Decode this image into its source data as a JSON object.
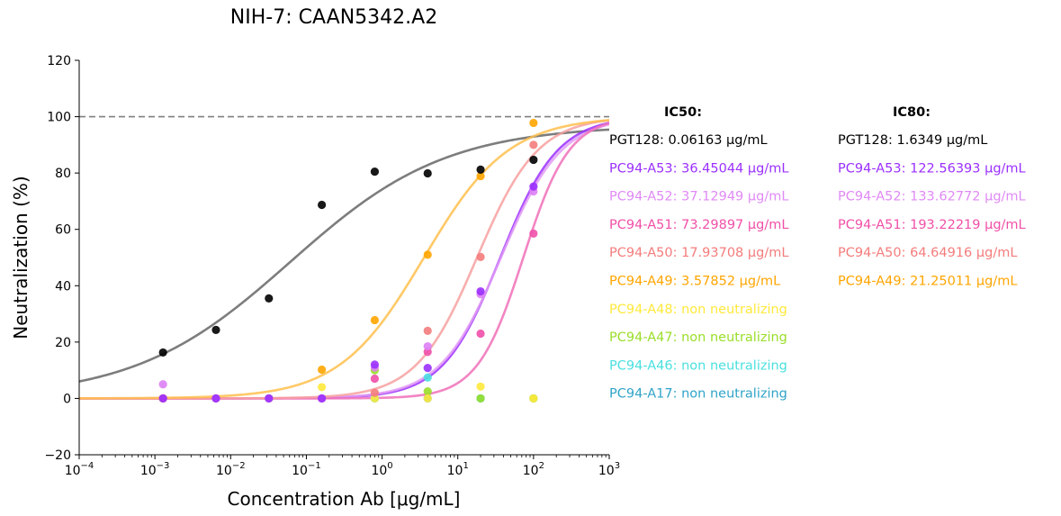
{
  "chart_data": {
    "type": "scatter",
    "title": "NIH-7: CAAN5342.A2",
    "xlabel": "Concentration Ab [μg/mL]",
    "ylabel": "Neutralization (%)",
    "xscale": "log",
    "xlim": [
      0.0001,
      1000
    ],
    "ylim": [
      -20,
      120
    ],
    "x_ticks": [
      {
        "base": "10",
        "exp": "−4"
      },
      {
        "base": "10",
        "exp": "−3"
      },
      {
        "base": "10",
        "exp": "−2"
      },
      {
        "base": "10",
        "exp": "−1"
      },
      {
        "base": "10",
        "exp": "0"
      },
      {
        "base": "10",
        "exp": "1"
      },
      {
        "base": "10",
        "exp": "2"
      },
      {
        "base": "10",
        "exp": "3"
      }
    ],
    "y_ticks": [
      "−20",
      "0",
      "20",
      "40",
      "60",
      "80",
      "100",
      "120"
    ],
    "y_tick_values": [
      -20,
      0,
      20,
      40,
      60,
      80,
      100,
      120
    ],
    "reference_line": {
      "y": 100,
      "style": "dashed",
      "color": "#808080"
    },
    "x": [
      0.00128,
      0.0064,
      0.032,
      0.16,
      0.8,
      4,
      20,
      100
    ],
    "series": [
      {
        "name": "PGT128",
        "color": "#000000",
        "curve_color": "#666666",
        "ic50": 0.06163,
        "ic80": 1.6349,
        "values": [
          16.3,
          24.3,
          35.5,
          68.7,
          80.5,
          79.9,
          81.2,
          84.7
        ],
        "top": 97
      },
      {
        "name": "PC94-A53",
        "color": "#9b30ff",
        "curve_color": "#9b30ff",
        "ic50": 36.45044,
        "ic80": 122.56393,
        "values": [
          0,
          0,
          0,
          0,
          12,
          10.8,
          38,
          75.2
        ],
        "top": 100
      },
      {
        "name": "PC94-A52",
        "color": "#dd80f5",
        "curve_color": "#e29af5",
        "ic50": 37.12949,
        "ic80": 133.62772,
        "values": [
          5,
          0,
          0,
          0,
          11,
          18.5,
          37,
          73.5
        ],
        "top": 100
      },
      {
        "name": "PC94-A51",
        "color": "#f050a8",
        "curve_color": "#f070b8",
        "ic50": 73.29897,
        "ic80": 193.22219,
        "values": [
          0,
          0,
          0,
          0,
          7,
          16.5,
          23,
          58.5
        ],
        "top": 100
      },
      {
        "name": "PC94-A50",
        "color": "#f47c7c",
        "curve_color": "#f7a0a0",
        "ic50": 17.93708,
        "ic80": 64.64916,
        "values": [
          0,
          0,
          0,
          0,
          2,
          24,
          50.2,
          90
        ],
        "top": 100
      },
      {
        "name": "PC94-A49",
        "color": "#ffa500",
        "curve_color": "#ffc04d",
        "ic50": 3.57852,
        "ic80": 21.25011,
        "values": [
          0,
          0,
          0,
          10.2,
          27.8,
          51,
          78.9,
          97.8
        ],
        "top": 100
      },
      {
        "name": "PC94-A48",
        "color": "#ffe93b",
        "curve_color": null,
        "ic50": null,
        "ic80": null,
        "values": [
          0,
          0,
          0,
          4,
          0,
          0,
          4.2,
          0
        ]
      },
      {
        "name": "PC94-A47",
        "color": "#9ade2a",
        "curve_color": null,
        "ic50": null,
        "ic80": null,
        "values": [
          0,
          0,
          0,
          0,
          10,
          2.5,
          0,
          0
        ]
      },
      {
        "name": "PC94-A46",
        "color": "#4ae0df",
        "curve_color": null,
        "ic50": null,
        "ic80": null,
        "values": [
          0,
          0,
          0,
          0,
          0,
          7.4,
          0,
          0
        ]
      },
      {
        "name": "PC94-A17",
        "color": "#30a4c8",
        "curve_color": null,
        "ic50": null,
        "ic80": null,
        "values": [
          0,
          0,
          0,
          0,
          0,
          0,
          0,
          0
        ]
      }
    ],
    "annotations": {
      "ic50_header": "IC50:",
      "ic80_header": "IC80:",
      "ic50_lines": [
        {
          "text": "PGT128: 0.06163 μg/mL",
          "color": "#000000"
        },
        {
          "text": "PC94-A53: 36.45044 μg/mL",
          "color": "#9b30ff"
        },
        {
          "text": "PC94-A52: 37.12949 μg/mL",
          "color": "#e08af5"
        },
        {
          "text": "PC94-A51: 73.29897 μg/mL",
          "color": "#f050a8"
        },
        {
          "text": "PC94-A50: 17.93708 μg/mL",
          "color": "#f47c7c"
        },
        {
          "text": "PC94-A49: 3.57852 μg/mL",
          "color": "#ffa500"
        },
        {
          "text": "PC94-A48: non neutralizing",
          "color": "#ffe93b"
        },
        {
          "text": "PC94-A47: non neutralizing",
          "color": "#9ade2a"
        },
        {
          "text": "PC94-A46: non neutralizing",
          "color": "#4ae0df"
        },
        {
          "text": "PC94-A17: non neutralizing",
          "color": "#30a4c8"
        }
      ],
      "ic80_lines": [
        {
          "text": "PGT128: 1.6349 μg/mL",
          "color": "#000000"
        },
        {
          "text": "PC94-A53: 122.56393 μg/mL",
          "color": "#9b30ff"
        },
        {
          "text": "PC94-A52: 133.62772 μg/mL",
          "color": "#e08af5"
        },
        {
          "text": "PC94-A51: 193.22219 μg/mL",
          "color": "#f050a8"
        },
        {
          "text": "PC94-A50: 64.64916 μg/mL",
          "color": "#f47c7c"
        },
        {
          "text": "PC94-A49: 21.25011 μg/mL",
          "color": "#ffa500"
        }
      ]
    }
  }
}
